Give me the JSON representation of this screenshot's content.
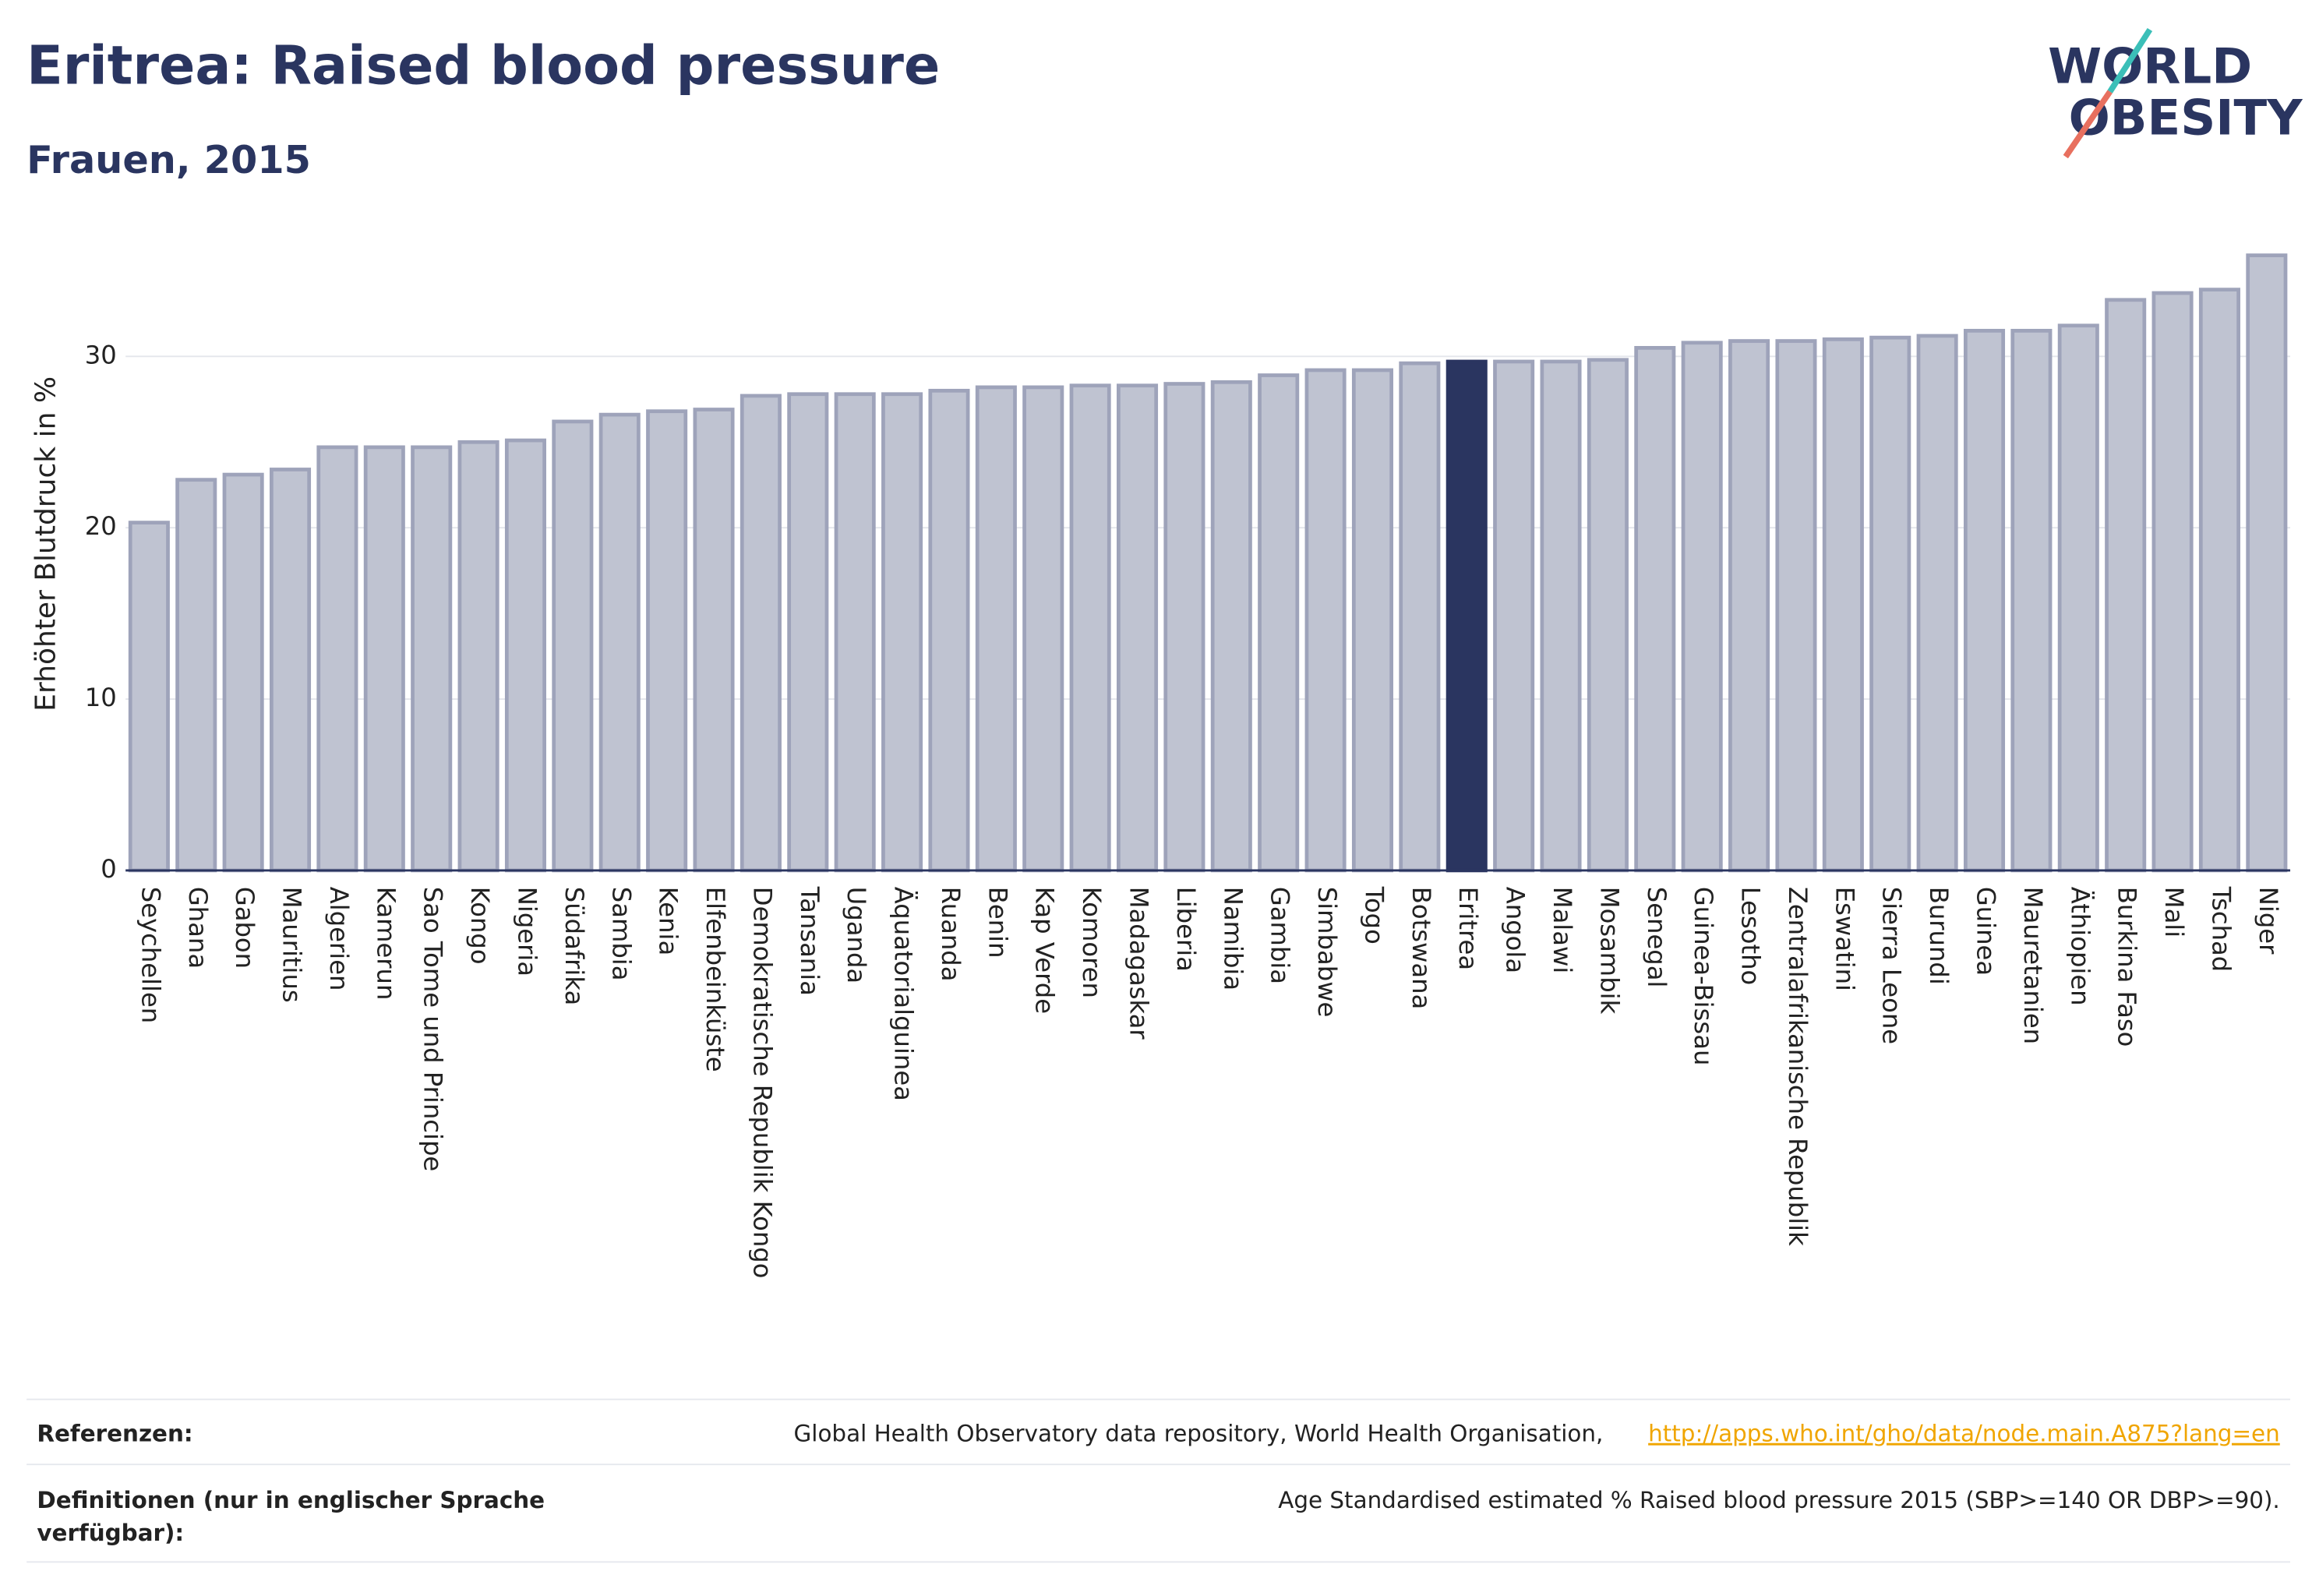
{
  "chart_data": {
    "type": "bar",
    "title": "Eritrea: Raised blood pressure",
    "subtitle": "Frauen, 2015",
    "y_label": "Erhöhter Blutdruck in %",
    "categories": [
      "Seychellen",
      "Ghana",
      "Gabon",
      "Mauritius",
      "Algerien",
      "Kamerun",
      "Sao Tome und Principe",
      "Kongo",
      "Nigeria",
      "Südafrika",
      "Sambia",
      "Kenia",
      "Elfenbeinküste",
      "Demokratische Republik Kongo",
      "Tansania",
      "Uganda",
      "Äquatorialguinea",
      "Ruanda",
      "Benin",
      "Kap Verde",
      "Komoren",
      "Madagaskar",
      "Liberia",
      "Namibia",
      "Gambia",
      "Simbabwe",
      "Togo",
      "Botswana",
      "Eritrea",
      "Angola",
      "Malawi",
      "Mosambik",
      "Senegal",
      "Guinea-Bissau",
      "Lesotho",
      "Zentralafrikanische Republik",
      "Eswatini",
      "Sierra Leone",
      "Burundi",
      "Guinea",
      "Mauretanien",
      "Äthiopien",
      "Burkina Faso",
      "Mali",
      "Tschad",
      "Niger"
    ],
    "values": [
      20.3,
      22.8,
      23.1,
      23.4,
      24.7,
      24.7,
      24.7,
      25.0,
      25.1,
      26.2,
      26.6,
      26.8,
      26.9,
      27.7,
      27.8,
      27.8,
      27.8,
      28.0,
      28.2,
      28.2,
      28.3,
      28.3,
      28.4,
      28.5,
      28.9,
      29.2,
      29.2,
      29.6,
      29.7,
      29.7,
      29.7,
      29.8,
      30.5,
      30.8,
      30.9,
      30.9,
      31.0,
      31.1,
      31.2,
      31.5,
      31.5,
      31.8,
      33.3,
      33.7,
      33.9,
      35.9
    ],
    "color": "#bfc3d1",
    "highlight_category": "Eritrea",
    "highlight_color": "#2a3560",
    "ylim": [
      0,
      37
    ],
    "yticks": [
      0,
      10,
      20,
      30
    ],
    "grid": true
  },
  "logo": [
    "WORLD",
    "OBESITY"
  ],
  "footer": {
    "references_label": "Referenzen:",
    "references_text": "Global Health Observatory data repository, World Health Organisation,",
    "references_link": "http://apps.who.int/gho/data/node.main.A875?lang=en",
    "definitions_label": [
      "Definitionen (nur in englischer Sprache",
      "verfügbar):"
    ],
    "definitions_text": "Age Standardised estimated % Raised blood pressure 2015 (SBP>=140 OR DBP>=90)."
  }
}
